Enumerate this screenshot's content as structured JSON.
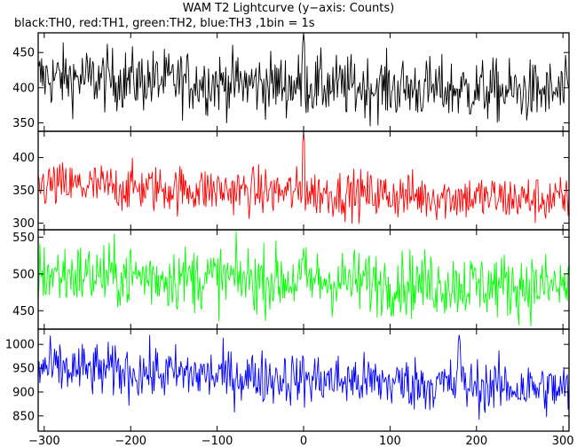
{
  "chart_data": {
    "type": "line",
    "title": "WAM T2 Lightcurve (y−axis: Counts)",
    "subtitle": "black:TH0, red:TH1, green:TH2, blue:TH3 ,1bin = 1s",
    "xlim": [
      -307,
      307
    ],
    "x_ticks": [
      -300,
      -200,
      -100,
      0,
      100,
      200,
      300
    ],
    "panels": [
      {
        "name": "TH0",
        "color": "#000000",
        "ylim": [
          338,
          478
        ],
        "y_ticks": [
          350,
          400,
          450
        ],
        "mean_start": 415,
        "mean_end": 392,
        "noise": 22,
        "spike_x": 0,
        "spike_value": 478
      },
      {
        "name": "TH1",
        "color": "#ff0000",
        "ylim": [
          290,
          440
        ],
        "y_ticks": [
          300,
          350,
          400
        ],
        "mean_start": 358,
        "mean_end": 335,
        "noise": 18,
        "spike_x": 0,
        "spike_value": 438
      },
      {
        "name": "TH2",
        "color": "#00ff00",
        "ylim": [
          425,
          560
        ],
        "y_ticks": [
          450,
          500,
          550
        ],
        "mean_start": 500,
        "mean_end": 482,
        "noise": 22,
        "spike_x": 0,
        "spike_value": 535
      },
      {
        "name": "TH3",
        "color": "#0000ff",
        "ylim": [
          818,
          1032
        ],
        "y_ticks": [
          850,
          900,
          950,
          1000
        ],
        "mean_start": 950,
        "mean_end": 905,
        "noise": 28,
        "spike_x": 180,
        "spike_value": 1020
      }
    ]
  }
}
